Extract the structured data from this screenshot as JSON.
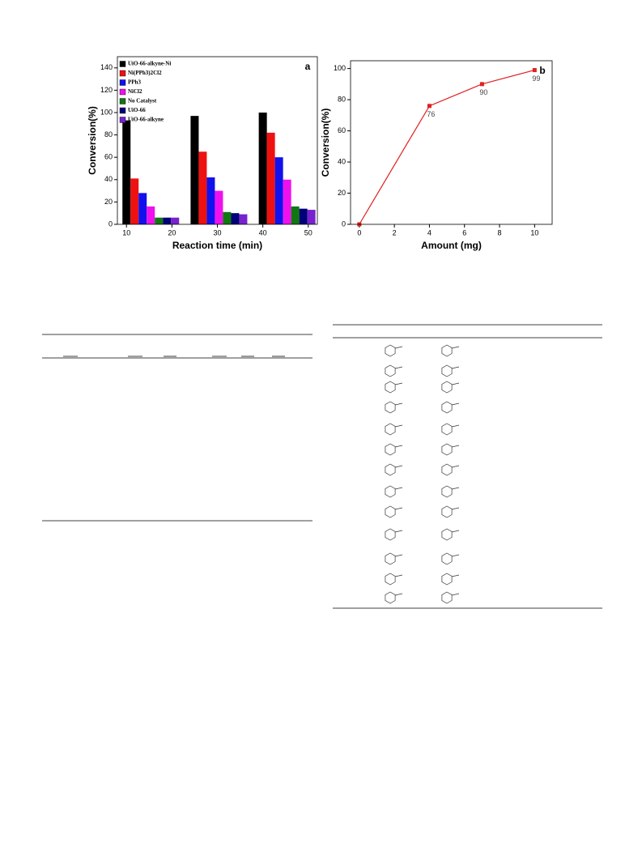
{
  "chart_data": [
    {
      "type": "bar",
      "annotation": "a",
      "xlabel": "Reaction time (min)",
      "ylabel": "Conversion(%)",
      "x": [
        10,
        25,
        40
      ],
      "xlim": [
        8,
        52
      ],
      "xticks": [
        10,
        20,
        30,
        40,
        50
      ],
      "ylim": [
        0,
        150
      ],
      "yticks": [
        0,
        20,
        40,
        60,
        80,
        100,
        120,
        140
      ],
      "legend": "top-left",
      "series": [
        {
          "name": "UiO-66-alkyne-Ni",
          "color": "#000000",
          "values": [
            93,
            97,
            100
          ]
        },
        {
          "name": "Ni(PPh3)2Cl2",
          "color": "#ee1111",
          "values": [
            41,
            65,
            82
          ]
        },
        {
          "name": "PPh3",
          "color": "#1111ee",
          "values": [
            28,
            42,
            60
          ]
        },
        {
          "name": "NiCl2",
          "color": "#ee11ee",
          "values": [
            16,
            30,
            40
          ]
        },
        {
          "name": "No Catalyst",
          "color": "#117711",
          "values": [
            6,
            11,
            16
          ]
        },
        {
          "name": "UiO-66",
          "color": "#000077",
          "values": [
            6,
            10,
            14
          ]
        },
        {
          "name": "UiO-66-alkyne",
          "color": "#7722cc",
          "values": [
            6,
            9,
            13
          ]
        }
      ]
    },
    {
      "type": "line",
      "annotation": "b",
      "xlabel": "Amount (mg)",
      "ylabel": "Conversion(%)",
      "x": [
        0,
        4,
        7,
        10
      ],
      "xlim": [
        -0.5,
        11
      ],
      "xticks": [
        0,
        2,
        4,
        6,
        8,
        10
      ],
      "ylim": [
        0,
        105
      ],
      "yticks": [
        0,
        20,
        40,
        60,
        80,
        100
      ],
      "series": [
        {
          "color": "#e02020",
          "values": [
            0,
            76,
            90,
            99
          ],
          "value_labels": [
            null,
            "76",
            "90",
            "99"
          ]
        }
      ]
    }
  ]
}
